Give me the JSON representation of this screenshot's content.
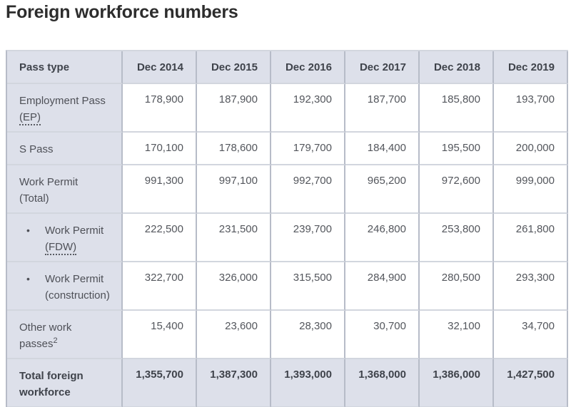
{
  "page": {
    "title": "Foreign workforce numbers"
  },
  "colors": {
    "header_background": "#dde0ea",
    "vertical_border": "#b7bcc8",
    "horizontal_border": "#d2d6de",
    "title_text": "#2d2d2d",
    "body_text": "#53565c",
    "header_text": "#3f434b"
  },
  "table": {
    "header": {
      "label_col": "Pass type",
      "columns": [
        "Dec 2014",
        "Dec 2015",
        "Dec 2016",
        "Dec 2017",
        "Dec 2018",
        "Dec 2019"
      ]
    },
    "rows": [
      {
        "label_lines": [
          "Employment Pass",
          "(EP)"
        ],
        "abbr_line_index": 1,
        "bullet": false,
        "is_total": false,
        "values": [
          "178,900",
          "187,900",
          "192,300",
          "187,700",
          "185,800",
          "193,700"
        ]
      },
      {
        "label_lines": [
          "S Pass"
        ],
        "bullet": false,
        "is_total": false,
        "values": [
          "170,100",
          "178,600",
          "179,700",
          "184,400",
          "195,500",
          "200,000"
        ]
      },
      {
        "label_lines": [
          "Work Permit",
          "(Total)"
        ],
        "bullet": false,
        "is_total": false,
        "values": [
          "991,300",
          "997,100",
          "992,700",
          "965,200",
          "972,600",
          "999,000"
        ]
      },
      {
        "label_lines": [
          "Work Permit",
          "(FDW)"
        ],
        "abbr_line_index": 1,
        "bullet": true,
        "is_total": false,
        "values": [
          "222,500",
          "231,500",
          "239,700",
          "246,800",
          "253,800",
          "261,800"
        ]
      },
      {
        "label_lines": [
          "Work Permit",
          "(construction)"
        ],
        "bullet": true,
        "is_total": false,
        "values": [
          "322,700",
          "326,000",
          "315,500",
          "284,900",
          "280,500",
          "293,300"
        ]
      },
      {
        "label_lines": [
          "Other work",
          "passes"
        ],
        "superscript": "2",
        "bullet": false,
        "is_total": false,
        "values": [
          "15,400",
          "23,600",
          "28,300",
          "30,700",
          "32,100",
          "34,700"
        ]
      },
      {
        "label_lines": [
          "Total foreign",
          "workforce"
        ],
        "bullet": false,
        "is_total": true,
        "values": [
          "1,355,700",
          "1,387,300",
          "1,393,000",
          "1,368,000",
          "1,386,000",
          "1,427,500"
        ]
      }
    ]
  },
  "chart_data": {
    "type": "table",
    "title": "Foreign workforce numbers",
    "categories": [
      "Dec 2014",
      "Dec 2015",
      "Dec 2016",
      "Dec 2017",
      "Dec 2018",
      "Dec 2019"
    ],
    "series": [
      {
        "name": "Employment Pass (EP)",
        "values": [
          178900,
          187900,
          192300,
          187700,
          185800,
          193700
        ]
      },
      {
        "name": "S Pass",
        "values": [
          170100,
          178600,
          179700,
          184400,
          195500,
          200000
        ]
      },
      {
        "name": "Work Permit (Total)",
        "values": [
          991300,
          997100,
          992700,
          965200,
          972600,
          999000
        ]
      },
      {
        "name": "Work Permit (FDW)",
        "values": [
          222500,
          231500,
          239700,
          246800,
          253800,
          261800
        ]
      },
      {
        "name": "Work Permit (construction)",
        "values": [
          322700,
          326000,
          315500,
          284900,
          280500,
          293300
        ]
      },
      {
        "name": "Other work passes",
        "values": [
          15400,
          23600,
          28300,
          30700,
          32100,
          34700
        ]
      },
      {
        "name": "Total foreign workforce",
        "values": [
          1355700,
          1387300,
          1393000,
          1368000,
          1386000,
          1427500
        ]
      }
    ]
  }
}
